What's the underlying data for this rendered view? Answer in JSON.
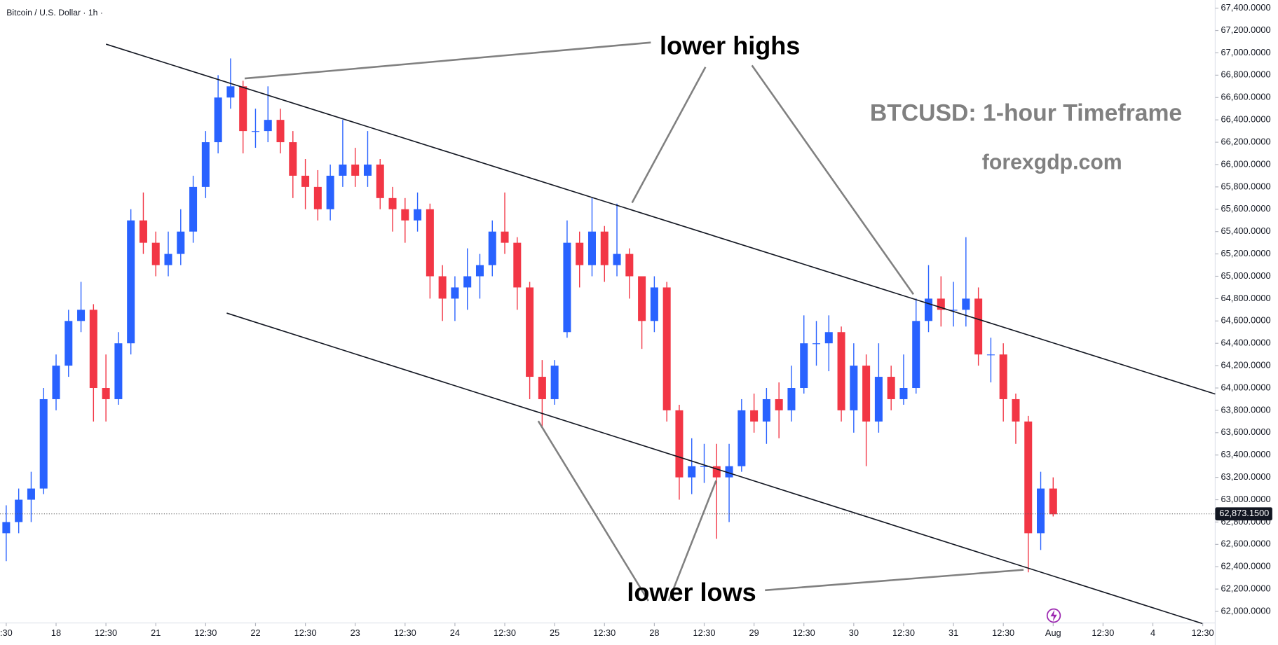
{
  "chart_data": {
    "type": "candlestick",
    "title": "Bitcoin / U.S. Dollar · 1h ·",
    "annotations": [
      "lower highs",
      "lower lows",
      "BTCUSD: 1-hour Timeframe",
      "forexgdp.com"
    ],
    "up_color": "#2962ff",
    "down_color": "#f23645",
    "ohlc": [
      [
        62700,
        62950,
        62450,
        62800
      ],
      [
        62800,
        63100,
        62700,
        63000
      ],
      [
        63000,
        63250,
        62800,
        63100
      ],
      [
        63100,
        64000,
        63050,
        63900
      ],
      [
        63900,
        64300,
        63800,
        64200
      ],
      [
        64200,
        64700,
        64100,
        64600
      ],
      [
        64600,
        64950,
        64500,
        64700
      ],
      [
        64700,
        64750,
        63700,
        64000
      ],
      [
        64000,
        64300,
        63700,
        63900
      ],
      [
        63900,
        64500,
        63850,
        64400
      ],
      [
        64400,
        65600,
        64300,
        65500
      ],
      [
        65500,
        65750,
        65200,
        65300
      ],
      [
        65300,
        65400,
        65000,
        65100
      ],
      [
        65100,
        65400,
        65000,
        65200
      ],
      [
        65200,
        65600,
        65100,
        65400
      ],
      [
        65400,
        65900,
        65300,
        65800
      ],
      [
        65800,
        66300,
        65700,
        66200
      ],
      [
        66200,
        66800,
        66100,
        66600
      ],
      [
        66600,
        66950,
        66500,
        66700
      ],
      [
        66700,
        66750,
        66100,
        66300
      ],
      [
        66300,
        66500,
        66150,
        66300
      ],
      [
        66300,
        66700,
        66200,
        66400
      ],
      [
        66400,
        66500,
        66100,
        66200
      ],
      [
        66200,
        66300,
        65700,
        65900
      ],
      [
        65900,
        66050,
        65600,
        65800
      ],
      [
        65800,
        65950,
        65500,
        65600
      ],
      [
        65600,
        66000,
        65500,
        65900
      ],
      [
        65900,
        66400,
        65800,
        66000
      ],
      [
        66000,
        66150,
        65800,
        65900
      ],
      [
        65900,
        66300,
        65800,
        66000
      ],
      [
        66000,
        66050,
        65600,
        65700
      ],
      [
        65700,
        65800,
        65400,
        65600
      ],
      [
        65600,
        65700,
        65300,
        65500
      ],
      [
        65500,
        65750,
        65400,
        65600
      ],
      [
        65600,
        65650,
        64800,
        65000
      ],
      [
        65000,
        65100,
        64600,
        64800
      ],
      [
        64800,
        65000,
        64600,
        64900
      ],
      [
        64900,
        65250,
        64700,
        65000
      ],
      [
        65000,
        65200,
        64800,
        65100
      ],
      [
        65100,
        65500,
        65000,
        65400
      ],
      [
        65400,
        65750,
        65200,
        65300
      ],
      [
        65300,
        65350,
        64700,
        64900
      ],
      [
        64900,
        64950,
        63900,
        64100
      ],
      [
        64100,
        64250,
        63650,
        63900
      ],
      [
        63900,
        64250,
        63850,
        64200
      ],
      [
        64500,
        65500,
        64450,
        65300
      ],
      [
        65300,
        65400,
        64900,
        65100
      ],
      [
        65100,
        65700,
        65000,
        65400
      ],
      [
        65400,
        65450,
        64950,
        65100
      ],
      [
        65100,
        65650,
        65000,
        65200
      ],
      [
        65200,
        65250,
        64800,
        65000
      ],
      [
        65000,
        65000,
        64350,
        64600
      ],
      [
        64600,
        65000,
        64500,
        64900
      ],
      [
        64900,
        64950,
        63700,
        63800
      ],
      [
        63800,
        63850,
        63000,
        63200
      ],
      [
        63200,
        63550,
        63050,
        63300
      ],
      [
        63300,
        63500,
        63150,
        63300
      ],
      [
        63300,
        63500,
        62650,
        63200
      ],
      [
        63200,
        63500,
        62800,
        63300
      ],
      [
        63300,
        63900,
        63250,
        63800
      ],
      [
        63800,
        63950,
        63600,
        63700
      ],
      [
        63700,
        64000,
        63500,
        63900
      ],
      [
        63900,
        64050,
        63550,
        63800
      ],
      [
        63800,
        64200,
        63700,
        64000
      ],
      [
        64000,
        64650,
        63950,
        64400
      ],
      [
        64400,
        64600,
        64200,
        64400
      ],
      [
        64400,
        64650,
        64150,
        64500
      ],
      [
        64500,
        64550,
        63700,
        63800
      ],
      [
        63800,
        64400,
        63600,
        64200
      ],
      [
        64200,
        64300,
        63300,
        63700
      ],
      [
        63700,
        64400,
        63600,
        64100
      ],
      [
        64100,
        64200,
        63800,
        63900
      ],
      [
        63900,
        64300,
        63850,
        64000
      ],
      [
        64000,
        64800,
        63950,
        64600
      ],
      [
        64600,
        65100,
        64500,
        64800
      ],
      [
        64800,
        65000,
        64550,
        64700
      ],
      [
        64700,
        64950,
        64550,
        64700
      ],
      [
        64700,
        65350,
        64550,
        64800
      ],
      [
        64800,
        64900,
        64200,
        64300
      ],
      [
        64300,
        64450,
        64050,
        64300
      ],
      [
        64300,
        64400,
        63700,
        63900
      ],
      [
        63900,
        63950,
        63500,
        63700
      ],
      [
        63700,
        63750,
        62350,
        62700
      ],
      [
        62700,
        63250,
        62550,
        63100
      ],
      [
        63100,
        63200,
        62850,
        62870
      ]
    ],
    "last_price": {
      "value": 62873.15,
      "label": "62,873.1500"
    },
    "xlim": [
      -0.5,
      97
    ],
    "xticks": [
      {
        "value": 0,
        "label": ":30"
      },
      {
        "value": 4,
        "label": "18"
      },
      {
        "value": 8,
        "label": "12:30"
      },
      {
        "value": 12,
        "label": "21"
      },
      {
        "value": 16,
        "label": "12:30"
      },
      {
        "value": 20,
        "label": "22"
      },
      {
        "value": 24,
        "label": "12:30"
      },
      {
        "value": 28,
        "label": "23"
      },
      {
        "value": 32,
        "label": "12:30"
      },
      {
        "value": 36,
        "label": "24"
      },
      {
        "value": 40,
        "label": "12:30"
      },
      {
        "value": 44,
        "label": "25"
      },
      {
        "value": 48,
        "label": "12:30"
      },
      {
        "value": 52,
        "label": "28"
      },
      {
        "value": 56,
        "label": "12:30"
      },
      {
        "value": 60,
        "label": "29"
      },
      {
        "value": 64,
        "label": "12:30"
      },
      {
        "value": 68,
        "label": "30"
      },
      {
        "value": 72,
        "label": "12:30"
      },
      {
        "value": 76,
        "label": "31"
      },
      {
        "value": 80,
        "label": "12:30"
      },
      {
        "value": 84,
        "label": "Aug"
      },
      {
        "value": 88,
        "label": "12:30"
      },
      {
        "value": 92,
        "label": "4"
      },
      {
        "value": 96,
        "label": "12:30"
      }
    ],
    "ylim": [
      61897,
      67473
    ],
    "yticks": [
      {
        "value": 62000,
        "label": "62,000.0000"
      },
      {
        "value": 62200,
        "label": "62,200.0000"
      },
      {
        "value": 62400,
        "label": "62,400.0000"
      },
      {
        "value": 62600,
        "label": "62,600.0000"
      },
      {
        "value": 62800,
        "label": "62,800.0000"
      },
      {
        "value": 63000,
        "label": "63,000.0000"
      },
      {
        "value": 63200,
        "label": "63,200.0000"
      },
      {
        "value": 63400,
        "label": "63,400.0000"
      },
      {
        "value": 63600,
        "label": "63,600.0000"
      },
      {
        "value": 63800,
        "label": "63,800.0000"
      },
      {
        "value": 64000,
        "label": "64,000.0000"
      },
      {
        "value": 64200,
        "label": "64,200.0000"
      },
      {
        "value": 64400,
        "label": "64,400.0000"
      },
      {
        "value": 64600,
        "label": "64,600.0000"
      },
      {
        "value": 64800,
        "label": "64,800.0000"
      },
      {
        "value": 65000,
        "label": "65,000.0000"
      },
      {
        "value": 65200,
        "label": "65,200.0000"
      },
      {
        "value": 65400,
        "label": "65,400.0000"
      },
      {
        "value": 65600,
        "label": "65,600.0000"
      },
      {
        "value": 65800,
        "label": "65,800.0000"
      },
      {
        "value": 66000,
        "label": "66,000.0000"
      },
      {
        "value": 66200,
        "label": "66,200.0000"
      },
      {
        "value": 66400,
        "label": "66,400.0000"
      },
      {
        "value": 66600,
        "label": "66,600.0000"
      },
      {
        "value": 66800,
        "label": "66,800.0000"
      },
      {
        "value": 67000,
        "label": "67,000.0000"
      },
      {
        "value": 67200,
        "label": "67,200.0000"
      },
      {
        "value": 67400,
        "label": "67,400.0000"
      }
    ]
  }
}
